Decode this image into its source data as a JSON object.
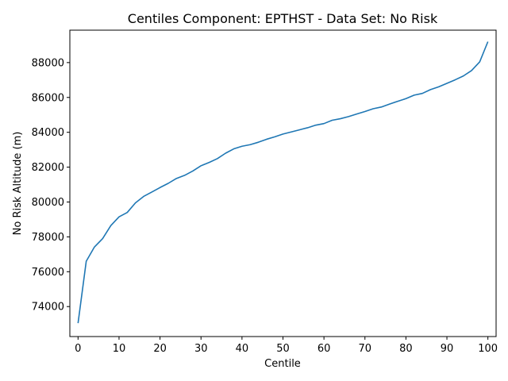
{
  "chart_data": {
    "type": "line",
    "title": "Centiles Component: EPTHST - Data Set: No Risk",
    "xlabel": "Centile",
    "ylabel": "No Risk Altitude (m)",
    "xlim": [
      -2,
      102
    ],
    "ylim": [
      72280,
      89860
    ],
    "xticks": [
      0,
      10,
      20,
      30,
      40,
      50,
      60,
      70,
      80,
      90,
      100
    ],
    "yticks": [
      74000,
      76000,
      78000,
      80000,
      82000,
      84000,
      86000,
      88000
    ],
    "grid": false,
    "color": "#1f77b4",
    "series": [
      {
        "x": [
          0,
          2,
          4,
          6,
          8,
          10,
          12,
          14,
          16,
          18,
          20,
          22,
          24,
          26,
          28,
          30,
          32,
          34,
          36,
          38,
          40,
          42,
          44,
          46,
          48,
          50,
          52,
          54,
          56,
          58,
          60,
          62,
          64,
          66,
          68,
          70,
          72,
          74,
          76,
          78,
          80,
          82,
          84,
          86,
          88,
          90,
          92,
          94,
          96,
          98,
          100
        ],
        "y": [
          73050,
          76600,
          77420,
          77900,
          78650,
          79150,
          79400,
          79950,
          80320,
          80570,
          80830,
          81070,
          81350,
          81530,
          81780,
          82080,
          82270,
          82490,
          82800,
          83050,
          83200,
          83290,
          83430,
          83600,
          83740,
          83900,
          84020,
          84140,
          84260,
          84410,
          84500,
          84690,
          84780,
          84900,
          85050,
          85190,
          85350,
          85450,
          85620,
          85780,
          85930,
          86130,
          86230,
          86450,
          86610,
          86810,
          87010,
          87230,
          87540,
          88040,
          89200
        ]
      }
    ]
  }
}
